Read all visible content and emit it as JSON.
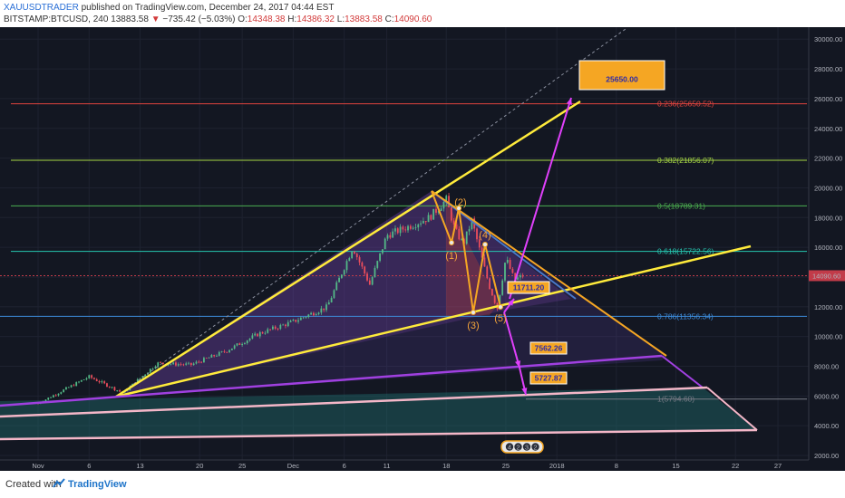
{
  "header": {
    "username": "XAUUSDTRADER",
    "published": "published on TradingView.com, December 24, 2017 04:44 EST",
    "symbol": "BITSTAMP:BTCUSD, 240",
    "last": "13883.58",
    "arrow": "▼",
    "change": "−735.42 (−5.03%)",
    "ohlc_o_label": "O:",
    "ohlc_o": "14348.38",
    "ohlc_h_label": "H:",
    "ohlc_h": "14386.32",
    "ohlc_l_label": "L:",
    "ohlc_l": "13883.58",
    "ohlc_c_label": "C:",
    "ohlc_c": "14090.60"
  },
  "footer": {
    "created_with": "Created with",
    "brand": "TradingView"
  },
  "colors": {
    "background": "#131722",
    "candle_up": "#53b987",
    "candle_down": "#eb4d5c",
    "trendline": "#ffeb3b",
    "arrows": "#e040fb",
    "target_box": "#f5a623",
    "target_text": "#2d2aa8"
  },
  "chart_data": {
    "type": "candlestick",
    "y_range": [
      1000,
      31000
    ],
    "y_ticks": [
      "30000.00",
      "28000.00",
      "26000.00",
      "24000.00",
      "22000.00",
      "20000.00",
      "18000.00",
      "16000.00",
      "14000.00",
      "12000.00",
      "10000.00",
      "8000.00",
      "6000.00",
      "4000.00",
      "2000.00"
    ],
    "y_tick_values": [
      30000,
      28000,
      26000,
      24000,
      22000,
      20000,
      18000,
      16000,
      14000,
      12000,
      10000,
      8000,
      6000,
      4000,
      2000
    ],
    "x_ticks": [
      "Nov",
      "6",
      "13",
      "20",
      "25",
      "Dec",
      "6",
      "11",
      "18",
      "25",
      "2018",
      "8",
      "15",
      "22",
      "27"
    ],
    "x_tick_days": [
      0,
      6,
      12,
      19,
      24,
      30,
      36,
      41,
      48,
      55,
      61,
      68,
      75,
      82,
      87
    ],
    "x_start_date": "2017-11-01",
    "current_price": 14090.6,
    "fib_levels": [
      {
        "label": "0.236(25650.52)",
        "value": 25650.52,
        "color": "#e0443e"
      },
      {
        "label": "0.382(21856.07)",
        "value": 21856.07,
        "color": "#a5d444"
      },
      {
        "label": "0.5(18789.31)",
        "value": 18789.31,
        "color": "#4caf50"
      },
      {
        "label": "0.618(15722.56)",
        "value": 15722.56,
        "color": "#26c6b0"
      },
      {
        "label": "0.786(11356.34)",
        "value": 11356.34,
        "color": "#3d8bd9"
      },
      {
        "label": "1(5794.60)",
        "value": 5794.6,
        "color": "#787b86"
      }
    ],
    "wave_labels": [
      "(1)",
      "(2)",
      "(3)",
      "(4)",
      "(5)"
    ],
    "annotations": [
      {
        "text": "25650.00",
        "value": 25650
      },
      {
        "text": "11711.20",
        "value": 11711.2
      },
      {
        "text": "7562.26",
        "value": 7562.26
      },
      {
        "text": "5727.87",
        "value": 5727.87
      }
    ],
    "bottom_badge": [
      "4",
      "2",
      "3",
      "2"
    ]
  }
}
